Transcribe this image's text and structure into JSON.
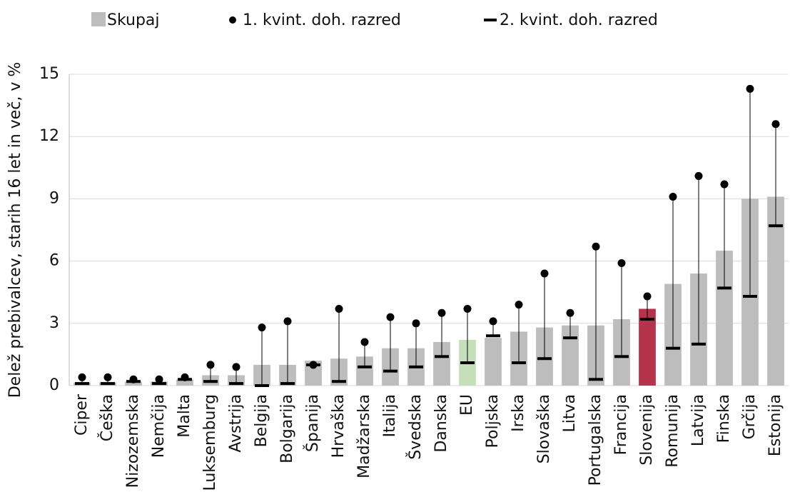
{
  "chart_data": {
    "type": "bar",
    "y_label": "Delež prebivalcev, starih 16 let in več, v %",
    "categories": [
      "Ciper",
      "Češka",
      "Nizozemska",
      "Nemčija",
      "Malta",
      "Luksemburg",
      "Avstrija",
      "Belgija",
      "Bolgarija",
      "Španija",
      "Hrvaška",
      "Madžarska",
      "Italija",
      "Švedska",
      "Danska",
      "EU",
      "Poljska",
      "Irska",
      "Slovaška",
      "Litva",
      "Portugalska",
      "Francija",
      "Slovenija",
      "Romunija",
      "Latvija",
      "Finska",
      "Grčija",
      "Estonija"
    ],
    "series": [
      {
        "name": "Skupaj",
        "color": "#bdbdbd",
        "colors": [
          "#bdbdbd",
          "#bdbdbd",
          "#bdbdbd",
          "#bdbdbd",
          "#bdbdbd",
          "#bdbdbd",
          "#bdbdbd",
          "#bdbdbd",
          "#bdbdbd",
          "#bdbdbd",
          "#bdbdbd",
          "#bdbdbd",
          "#bdbdbd",
          "#bdbdbd",
          "#bdbdbd",
          "#c5dfbb",
          "#bdbdbd",
          "#bdbdbd",
          "#bdbdbd",
          "#bdbdbd",
          "#bdbdbd",
          "#bdbdbd",
          "#b5334b",
          "#bdbdbd",
          "#bdbdbd",
          "#bdbdbd",
          "#bdbdbd",
          "#bdbdbd"
        ],
        "values": [
          0.15,
          0.15,
          0.2,
          0.2,
          0.3,
          0.5,
          0.5,
          1.0,
          1.0,
          1.2,
          1.3,
          1.4,
          1.8,
          1.8,
          2.1,
          2.2,
          2.3,
          2.6,
          2.8,
          2.9,
          2.9,
          3.2,
          3.7,
          4.9,
          5.4,
          6.5,
          9.0,
          9.1
        ]
      },
      {
        "name": "1. kvint. doh. razred",
        "color": "#000000",
        "values": [
          0.4,
          0.4,
          0.3,
          0.3,
          0.4,
          1.0,
          0.9,
          2.8,
          3.1,
          1.0,
          3.7,
          2.1,
          3.3,
          3.0,
          3.5,
          3.7,
          3.1,
          3.9,
          5.4,
          3.5,
          6.7,
          5.9,
          4.3,
          9.1,
          10.1,
          9.7,
          14.3,
          12.6
        ]
      },
      {
        "name": "2. kvint. doh. razred",
        "color": "#000000",
        "values": [
          0.1,
          0.1,
          0.2,
          0.1,
          0.3,
          0.2,
          0.1,
          0.0,
          0.1,
          1.0,
          0.2,
          0.9,
          0.7,
          0.9,
          1.4,
          1.1,
          2.4,
          1.1,
          1.3,
          2.3,
          0.3,
          1.4,
          3.2,
          1.8,
          2.0,
          4.7,
          4.3,
          7.7
        ]
      }
    ],
    "ylim": [
      0,
      15
    ],
    "yticks": [
      0,
      3,
      6,
      9,
      12,
      15
    ],
    "grid": true
  }
}
